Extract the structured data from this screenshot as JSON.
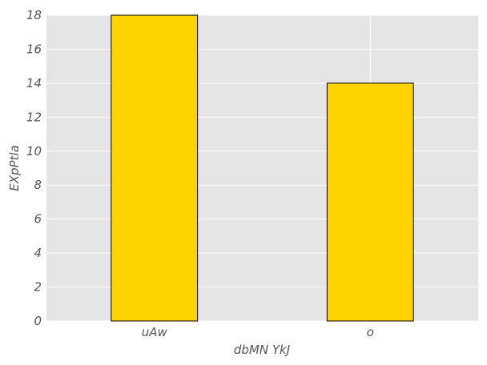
{
  "chart_data": {
    "type": "bar",
    "categories": [
      "uAw",
      "o"
    ],
    "values": [
      18,
      14
    ],
    "xlabel": "dbMN YkJ",
    "ylabel": "EXpPtla",
    "ylim": [
      0,
      18
    ],
    "yticks": [
      0,
      2,
      4,
      6,
      8,
      10,
      12,
      14,
      16,
      18
    ],
    "grid": true,
    "colors": {
      "bar": "#FFD300",
      "bar_edge": "#000000",
      "plot_background": "#E5E5E5",
      "grid": "#FFFFFF",
      "text": "#555555"
    }
  }
}
